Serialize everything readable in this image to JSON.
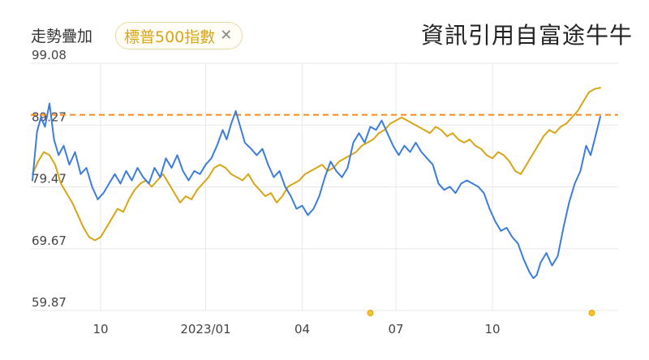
{
  "header": {
    "overlay_label": "走勢疊加",
    "chip_label": "標普500指數",
    "chip_close": "✕",
    "source": "資訊引用自富途牛牛"
  },
  "chart_data": {
    "type": "line",
    "ylim": [
      59.87,
      99.08
    ],
    "yticks": [
      "99.08",
      "89.27",
      "79.47",
      "69.67",
      "59.87"
    ],
    "xticks": [
      {
        "label": "10",
        "t": 0.12
      },
      {
        "label": "2023/01",
        "t": 0.305
      },
      {
        "label": "04",
        "t": 0.475
      },
      {
        "label": "07",
        "t": 0.64
      },
      {
        "label": "10",
        "t": 0.81
      }
    ],
    "reference_line": 90.9,
    "grid": true,
    "colors": {
      "blue": "#3b7ddd",
      "gold": "#d9a514",
      "reference": "#f08a24",
      "grid": "#e8e8e8"
    },
    "series": [
      {
        "color": "#3b7ddd",
        "points": [
          [
            0.0,
            80.5
          ],
          [
            0.008,
            88.2
          ],
          [
            0.015,
            90.5
          ],
          [
            0.022,
            89.0
          ],
          [
            0.03,
            92.7
          ],
          [
            0.038,
            87.0
          ],
          [
            0.046,
            84.5
          ],
          [
            0.055,
            86.0
          ],
          [
            0.065,
            83.0
          ],
          [
            0.075,
            85.0
          ],
          [
            0.085,
            81.5
          ],
          [
            0.095,
            82.5
          ],
          [
            0.105,
            79.5
          ],
          [
            0.115,
            77.5
          ],
          [
            0.125,
            78.5
          ],
          [
            0.135,
            80.0
          ],
          [
            0.145,
            81.5
          ],
          [
            0.155,
            80.0
          ],
          [
            0.165,
            82.0
          ],
          [
            0.175,
            80.5
          ],
          [
            0.185,
            82.5
          ],
          [
            0.195,
            81.0
          ],
          [
            0.205,
            80.0
          ],
          [
            0.215,
            82.5
          ],
          [
            0.225,
            81.0
          ],
          [
            0.235,
            84.0
          ],
          [
            0.245,
            82.5
          ],
          [
            0.255,
            84.5
          ],
          [
            0.265,
            82.0
          ],
          [
            0.275,
            80.5
          ],
          [
            0.285,
            82.0
          ],
          [
            0.295,
            81.5
          ],
          [
            0.305,
            83.0
          ],
          [
            0.315,
            84.0
          ],
          [
            0.325,
            86.0
          ],
          [
            0.335,
            88.5
          ],
          [
            0.342,
            87.0
          ],
          [
            0.35,
            89.5
          ],
          [
            0.358,
            91.5
          ],
          [
            0.366,
            89.0
          ],
          [
            0.374,
            86.5
          ],
          [
            0.385,
            85.5
          ],
          [
            0.395,
            84.5
          ],
          [
            0.405,
            85.5
          ],
          [
            0.415,
            83.0
          ],
          [
            0.425,
            81.0
          ],
          [
            0.435,
            82.0
          ],
          [
            0.445,
            79.5
          ],
          [
            0.455,
            78.0
          ],
          [
            0.465,
            76.0
          ],
          [
            0.475,
            76.5
          ],
          [
            0.485,
            75.0
          ],
          [
            0.495,
            76.0
          ],
          [
            0.505,
            78.0
          ],
          [
            0.515,
            81.0
          ],
          [
            0.525,
            83.5
          ],
          [
            0.535,
            82.0
          ],
          [
            0.545,
            81.0
          ],
          [
            0.555,
            82.5
          ],
          [
            0.565,
            86.5
          ],
          [
            0.575,
            88.0
          ],
          [
            0.585,
            86.5
          ],
          [
            0.595,
            89.0
          ],
          [
            0.605,
            88.5
          ],
          [
            0.615,
            90.0
          ],
          [
            0.625,
            88.0
          ],
          [
            0.635,
            86.0
          ],
          [
            0.645,
            84.5
          ],
          [
            0.655,
            86.0
          ],
          [
            0.665,
            85.0
          ],
          [
            0.675,
            86.5
          ],
          [
            0.685,
            85.0
          ],
          [
            0.695,
            84.0
          ],
          [
            0.705,
            83.0
          ],
          [
            0.715,
            80.0
          ],
          [
            0.725,
            79.0
          ],
          [
            0.735,
            79.5
          ],
          [
            0.745,
            78.5
          ],
          [
            0.755,
            80.0
          ],
          [
            0.765,
            80.5
          ],
          [
            0.775,
            80.0
          ],
          [
            0.785,
            79.5
          ],
          [
            0.795,
            78.5
          ],
          [
            0.805,
            76.0
          ],
          [
            0.815,
            74.0
          ],
          [
            0.825,
            72.5
          ],
          [
            0.835,
            73.0
          ],
          [
            0.845,
            71.5
          ],
          [
            0.855,
            70.5
          ],
          [
            0.865,
            68.0
          ],
          [
            0.875,
            66.0
          ],
          [
            0.882,
            65.0
          ],
          [
            0.888,
            65.5
          ],
          [
            0.895,
            67.5
          ],
          [
            0.905,
            69.0
          ],
          [
            0.915,
            67.0
          ],
          [
            0.925,
            68.5
          ],
          [
            0.935,
            73.0
          ],
          [
            0.945,
            77.0
          ],
          [
            0.955,
            80.0
          ],
          [
            0.965,
            82.0
          ],
          [
            0.975,
            86.0
          ],
          [
            0.983,
            84.5
          ],
          [
            0.99,
            87.0
          ],
          [
            1.0,
            90.6
          ]
        ]
      },
      {
        "color": "#d9a514",
        "points": [
          [
            0.0,
            81.5
          ],
          [
            0.01,
            83.5
          ],
          [
            0.02,
            85.0
          ],
          [
            0.03,
            84.5
          ],
          [
            0.04,
            83.0
          ],
          [
            0.05,
            80.0
          ],
          [
            0.06,
            78.5
          ],
          [
            0.07,
            77.0
          ],
          [
            0.08,
            75.0
          ],
          [
            0.09,
            73.0
          ],
          [
            0.1,
            71.5
          ],
          [
            0.11,
            71.0
          ],
          [
            0.12,
            71.5
          ],
          [
            0.13,
            73.0
          ],
          [
            0.14,
            74.5
          ],
          [
            0.15,
            76.0
          ],
          [
            0.16,
            75.5
          ],
          [
            0.17,
            77.5
          ],
          [
            0.18,
            79.0
          ],
          [
            0.19,
            80.0
          ],
          [
            0.2,
            80.5
          ],
          [
            0.21,
            79.5
          ],
          [
            0.22,
            80.5
          ],
          [
            0.23,
            81.5
          ],
          [
            0.24,
            80.0
          ],
          [
            0.25,
            78.5
          ],
          [
            0.26,
            77.0
          ],
          [
            0.27,
            78.0
          ],
          [
            0.28,
            77.5
          ],
          [
            0.29,
            79.0
          ],
          [
            0.3,
            80.0
          ],
          [
            0.31,
            81.0
          ],
          [
            0.32,
            82.5
          ],
          [
            0.33,
            83.0
          ],
          [
            0.34,
            82.5
          ],
          [
            0.35,
            81.5
          ],
          [
            0.36,
            81.0
          ],
          [
            0.37,
            80.5
          ],
          [
            0.38,
            81.5
          ],
          [
            0.39,
            80.0
          ],
          [
            0.4,
            79.0
          ],
          [
            0.41,
            78.0
          ],
          [
            0.42,
            78.5
          ],
          [
            0.43,
            77.0
          ],
          [
            0.44,
            78.0
          ],
          [
            0.45,
            79.5
          ],
          [
            0.46,
            80.0
          ],
          [
            0.47,
            80.5
          ],
          [
            0.48,
            81.5
          ],
          [
            0.49,
            82.0
          ],
          [
            0.5,
            82.5
          ],
          [
            0.51,
            83.0
          ],
          [
            0.52,
            82.0
          ],
          [
            0.53,
            82.5
          ],
          [
            0.54,
            83.5
          ],
          [
            0.55,
            84.0
          ],
          [
            0.56,
            84.5
          ],
          [
            0.57,
            85.0
          ],
          [
            0.58,
            86.0
          ],
          [
            0.59,
            86.5
          ],
          [
            0.6,
            87.0
          ],
          [
            0.61,
            88.0
          ],
          [
            0.62,
            88.5
          ],
          [
            0.63,
            89.5
          ],
          [
            0.64,
            90.0
          ],
          [
            0.65,
            90.5
          ],
          [
            0.66,
            90.0
          ],
          [
            0.67,
            89.5
          ],
          [
            0.68,
            89.0
          ],
          [
            0.69,
            88.5
          ],
          [
            0.7,
            88.0
          ],
          [
            0.71,
            89.0
          ],
          [
            0.72,
            88.5
          ],
          [
            0.73,
            87.5
          ],
          [
            0.74,
            88.0
          ],
          [
            0.75,
            87.0
          ],
          [
            0.76,
            86.5
          ],
          [
            0.77,
            87.0
          ],
          [
            0.78,
            86.0
          ],
          [
            0.79,
            85.5
          ],
          [
            0.8,
            84.5
          ],
          [
            0.81,
            84.0
          ],
          [
            0.82,
            85.0
          ],
          [
            0.83,
            84.5
          ],
          [
            0.84,
            83.5
          ],
          [
            0.85,
            82.0
          ],
          [
            0.86,
            81.5
          ],
          [
            0.87,
            83.0
          ],
          [
            0.88,
            84.5
          ],
          [
            0.89,
            86.0
          ],
          [
            0.9,
            87.5
          ],
          [
            0.91,
            88.5
          ],
          [
            0.92,
            88.0
          ],
          [
            0.93,
            89.0
          ],
          [
            0.94,
            89.5
          ],
          [
            0.95,
            90.5
          ],
          [
            0.96,
            91.5
          ],
          [
            0.97,
            93.0
          ],
          [
            0.98,
            94.5
          ],
          [
            0.99,
            95.0
          ],
          [
            1.0,
            95.2
          ]
        ]
      }
    ],
    "markers": [
      {
        "t": 0.595,
        "color": "#f2c230"
      },
      {
        "t": 0.985,
        "color": "#f2c230"
      }
    ]
  }
}
